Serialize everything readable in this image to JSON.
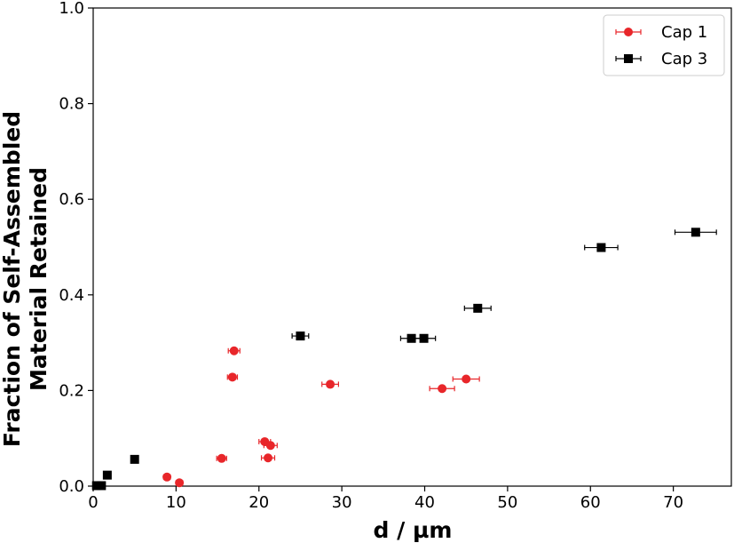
{
  "chart_data": {
    "type": "scatter",
    "xlabel": "d / µm",
    "ylabel_lines": [
      "Fraction of Self-Assembled",
      "Material Retained"
    ],
    "xlim": [
      0,
      77
    ],
    "ylim": [
      0,
      1.0
    ],
    "x_ticks": [
      0,
      10,
      20,
      30,
      40,
      50,
      60,
      70
    ],
    "y_ticks": [
      0.0,
      0.2,
      0.4,
      0.6,
      0.8,
      1.0
    ],
    "x_tick_labels": [
      "0",
      "10",
      "20",
      "30",
      "40",
      "50",
      "60",
      "70"
    ],
    "y_tick_labels": [
      "0.0",
      "0.2",
      "0.4",
      "0.6",
      "0.8",
      "1.0"
    ],
    "grid": false,
    "legend_position": "top-right",
    "series": [
      {
        "name": "Cap 1",
        "marker": "circle",
        "color": "#e8262a",
        "points": [
          {
            "x": 8.9,
            "y": 0.019,
            "xerr": 0.4
          },
          {
            "x": 10.4,
            "y": 0.007,
            "xerr": 0.4
          },
          {
            "x": 15.5,
            "y": 0.058,
            "xerr": 0.6
          },
          {
            "x": 16.8,
            "y": 0.228,
            "xerr": 0.6
          },
          {
            "x": 17.0,
            "y": 0.283,
            "xerr": 0.7
          },
          {
            "x": 20.7,
            "y": 0.093,
            "xerr": 0.7
          },
          {
            "x": 21.1,
            "y": 0.059,
            "xerr": 0.8
          },
          {
            "x": 21.4,
            "y": 0.085,
            "xerr": 0.8
          },
          {
            "x": 28.6,
            "y": 0.213,
            "xerr": 1.0
          },
          {
            "x": 42.1,
            "y": 0.204,
            "xerr": 1.5
          },
          {
            "x": 45.0,
            "y": 0.224,
            "xerr": 1.6
          }
        ]
      },
      {
        "name": "Cap 3",
        "marker": "square",
        "color": "#000000",
        "points": [
          {
            "x": 0.4,
            "y": 0.001,
            "xerr": 0.3
          },
          {
            "x": 1.0,
            "y": 0.001,
            "xerr": 0.3
          },
          {
            "x": 1.7,
            "y": 0.023,
            "xerr": 0.3
          },
          {
            "x": 5.0,
            "y": 0.056,
            "xerr": 0.4
          },
          {
            "x": 25.0,
            "y": 0.314,
            "xerr": 1.0
          },
          {
            "x": 38.4,
            "y": 0.309,
            "xerr": 1.3
          },
          {
            "x": 39.9,
            "y": 0.309,
            "xerr": 1.4
          },
          {
            "x": 46.4,
            "y": 0.372,
            "xerr": 1.6
          },
          {
            "x": 61.3,
            "y": 0.499,
            "xerr": 2.0
          },
          {
            "x": 72.7,
            "y": 0.531,
            "xerr": 2.5
          }
        ]
      }
    ]
  }
}
